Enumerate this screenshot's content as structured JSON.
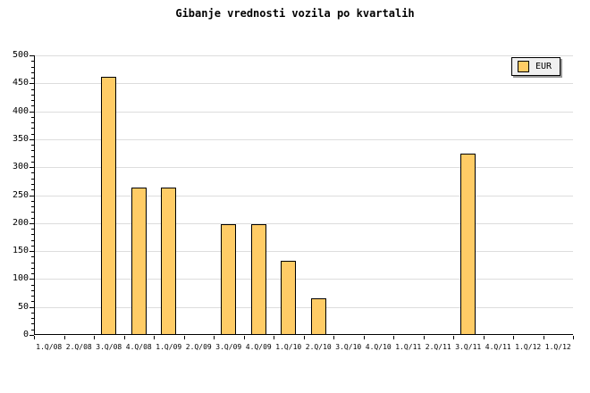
{
  "title": "Gibanje vrednosti vozila po kvartalih",
  "legend": {
    "label": "EUR"
  },
  "colors": {
    "background": "#FFFFFF",
    "bar_fill": "#FFCC66",
    "bar_border": "#000000",
    "grid": "#DDDDDD",
    "axis": "#000000",
    "legend_bg": "#F0F0F0",
    "legend_shadow": "#999999",
    "text": "#000000"
  },
  "chart_data": {
    "type": "bar",
    "title": "Gibanje vrednosti vozila po kvartalih",
    "categories": [
      "1.Q/08",
      "2.Q/08",
      "3.Q/08",
      "4.Q/08",
      "1.Q/09",
      "2.Q/09",
      "3.Q/09",
      "4.Q/09",
      "1.Q/10",
      "2.Q/10",
      "3.Q/10",
      "4.Q/10",
      "1.Q/11",
      "2.Q/11",
      "3.Q/11",
      "4.Q/11",
      "1.Q/12",
      "1.Q/12"
    ],
    "series": [
      {
        "name": "EUR",
        "values": [
          0,
          0,
          462,
          264,
          264,
          0,
          198,
          198,
          132,
          66,
          0,
          0,
          0,
          0,
          325,
          0,
          0,
          0
        ]
      }
    ],
    "xlabel": "",
    "ylabel": "",
    "ylim": [
      0,
      500
    ],
    "ytick_major": 50,
    "ytick_minor": 10,
    "grid": "horizontal",
    "legend_position": "top-right"
  }
}
